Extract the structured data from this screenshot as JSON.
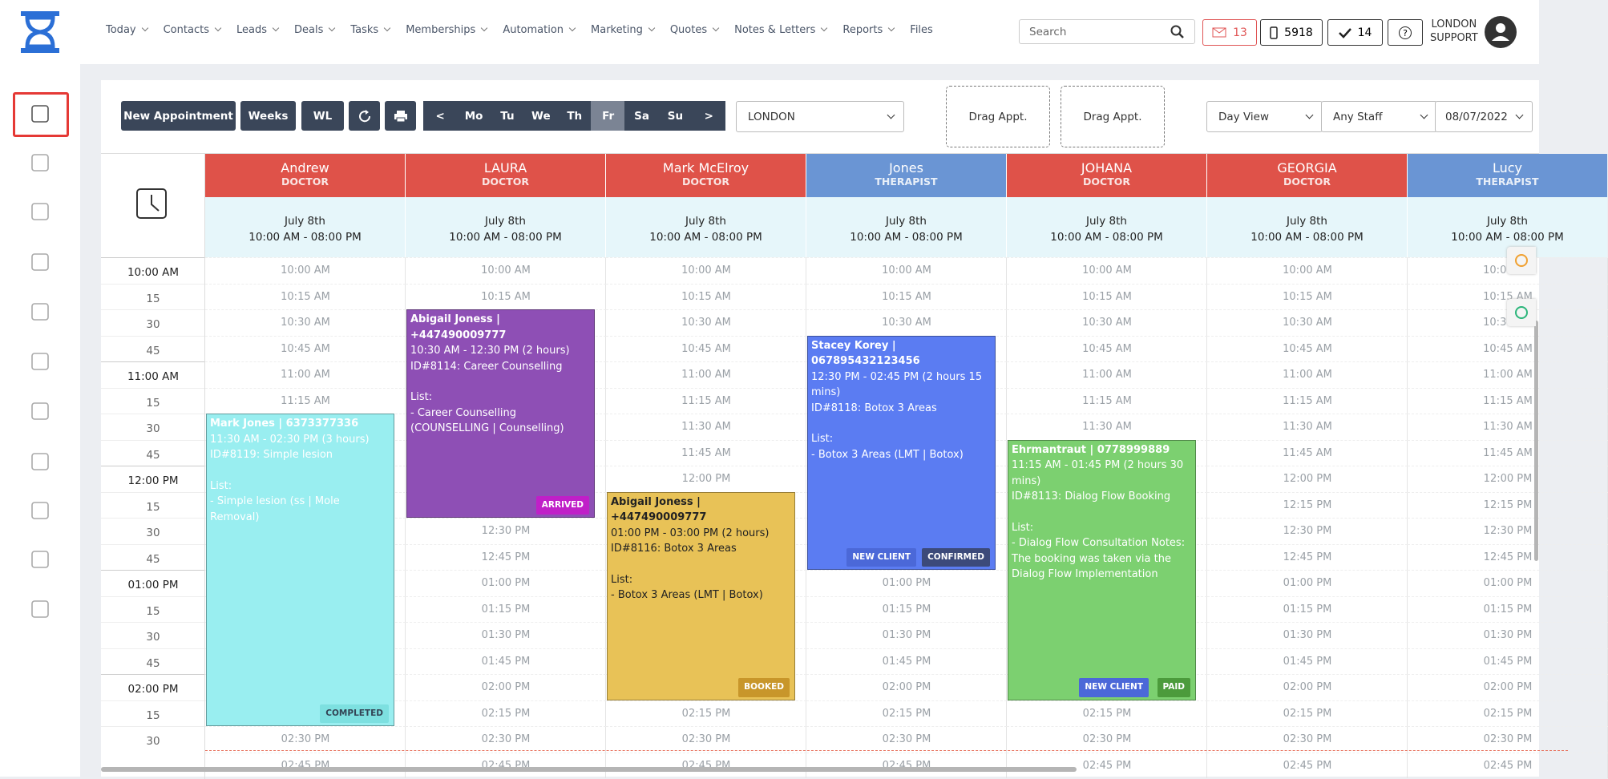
{
  "nav": {
    "items": [
      "Today",
      "Contacts",
      "Leads",
      "Deals",
      "Tasks",
      "Memberships",
      "Automation",
      "Marketing",
      "Quotes",
      "Notes & Letters",
      "Reports",
      "Files"
    ]
  },
  "header": {
    "search_placeholder": "Search",
    "mail_count": 13,
    "phone_count": 5918,
    "tasks_count": 14,
    "user_line1": "LONDON",
    "user_line2": "SUPPORT"
  },
  "toolbar": {
    "buttons": [
      "New Appointment",
      "Weeks",
      "WL"
    ],
    "days": [
      "<",
      "Mo",
      "Tu",
      "We",
      "Th",
      "Fr",
      "Sa",
      "Su",
      ">"
    ],
    "location": "LONDON",
    "drag_slots": [
      "Drag Appt.",
      "Drag Appt."
    ],
    "view": "Day View",
    "staff_filter": "Any Staff",
    "date": "08/07/2022"
  },
  "calendar": {
    "time_labels": [
      "10:00 AM",
      "15",
      "30",
      "45",
      "11:00 AM",
      "15",
      "30",
      "45",
      "12:00 PM",
      "15",
      "30",
      "45",
      "01:00 PM",
      "15",
      "30",
      "45",
      "02:00 PM",
      "15",
      "30"
    ],
    "slots": [
      "10:00 AM",
      "10:15 AM",
      "10:30 AM",
      "10:45 AM",
      "11:00 AM",
      "11:15 AM",
      "11:30 AM",
      "11:45 AM",
      "12:00 PM",
      "12:15 PM",
      "12:30 PM",
      "12:45 PM",
      "01:00 PM",
      "01:15 PM",
      "01:30 PM",
      "01:45 PM",
      "02:00 PM",
      "02:15 PM",
      "02:30 PM",
      "02:45 PM"
    ],
    "staff": [
      {
        "name": "Andrew",
        "role": "DOCTOR",
        "date": "July 8th",
        "hours": "10:00 AM - 08:00 PM"
      },
      {
        "name": "LAURA",
        "role": "DOCTOR",
        "date": "July 8th",
        "hours": "10:00 AM - 08:00 PM"
      },
      {
        "name": "Mark McElroy",
        "role": "DOCTOR",
        "date": "July 8th",
        "hours": "10:00 AM - 08:00 PM"
      },
      {
        "name": "Jones",
        "role": "THERAPIST",
        "date": "July 8th",
        "hours": "10:00 AM - 08:00 PM"
      },
      {
        "name": "JOHANA",
        "role": "DOCTOR",
        "date": "July 8th",
        "hours": "10:00 AM - 08:00 PM"
      },
      {
        "name": "GEORGIA",
        "role": "DOCTOR",
        "date": "July 8th",
        "hours": "10:00 AM - 08:00 PM"
      },
      {
        "name": "Lucy",
        "role": "THERAPIST",
        "date": "July 8th",
        "hours": "10:00 AM - 08:00 PM"
      }
    ],
    "appointments": [
      {
        "title": "Mark Jones | 6373377336",
        "time": "11:30 AM - 02:30 PM (3 hours)",
        "id": "ID#8119: Simple lesion",
        "list_label": "List:",
        "item": "- Simple lesion (ss | Mole Removal)",
        "badges": [
          "COMPLETED"
        ]
      },
      {
        "title": "Abigail Joness | +447490009777",
        "time": "10:30 AM - 12:30 PM (2 hours)",
        "id": "ID#8114: Career Counselling",
        "list_label": "List:",
        "item": "- Career Counselling (COUNSELLING | Counselling)",
        "badges": [
          "ARRIVED"
        ]
      },
      {
        "title": "Abigail Joness | +447490009777",
        "time": "01:00 PM - 03:00 PM (2 hours)",
        "id": "ID#8116: Botox 3 Areas",
        "list_label": "List:",
        "item": "- Botox 3 Areas (LMT | Botox)",
        "badges": [
          "BOOKED"
        ]
      },
      {
        "title": "Stacey Korey | 067895432123456",
        "time": "12:30 PM - 02:45 PM (2 hours 15 mins)",
        "id": "ID#8118: Botox 3 Areas",
        "list_label": "List:",
        "item": "- Botox 3 Areas (LMT | Botox)",
        "badges": [
          "NEW CLIENT",
          "CONFIRMED"
        ]
      },
      {
        "title": "Ehrmantraut | 0778999889",
        "time": "11:15 AM - 01:45 PM (2 hours 30 mins)",
        "id": "ID#8113: Dialog Flow Booking",
        "list_label": "List:",
        "item": "- Dialog Flow Consultation Notes: The booking was taken via the Dialog Flow Implementation",
        "badges": [
          "NEW CLIENT",
          "PAID"
        ]
      }
    ]
  }
}
